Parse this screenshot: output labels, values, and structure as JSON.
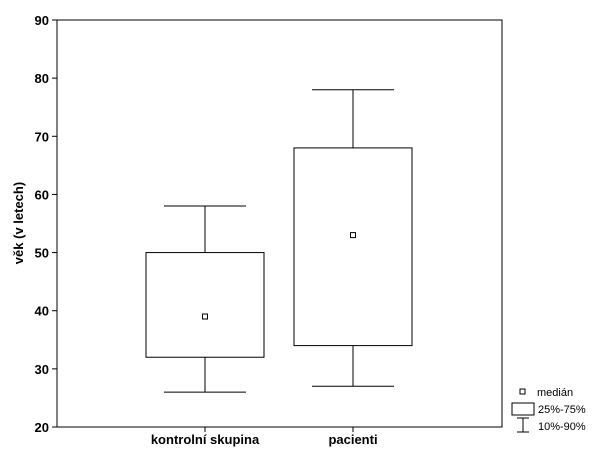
{
  "chart_data": {
    "type": "boxplot",
    "ylabel": "věk (v letech)",
    "ylim": [
      20,
      90
    ],
    "yticks": [
      20,
      30,
      40,
      50,
      60,
      70,
      80,
      90
    ],
    "categories": [
      "kontrolní skupina",
      "pacienti"
    ],
    "boxes": [
      {
        "category": "kontrolní skupina",
        "p10": 26,
        "q1": 32,
        "median": 39,
        "q3": 50,
        "p90": 58
      },
      {
        "category": "pacienti",
        "p10": 27,
        "q1": 34,
        "median": 53,
        "q3": 68,
        "p90": 78
      }
    ],
    "legend": {
      "position": "bottom-right",
      "items": [
        "medián",
        "25%-75%",
        "10%-90%"
      ]
    }
  }
}
